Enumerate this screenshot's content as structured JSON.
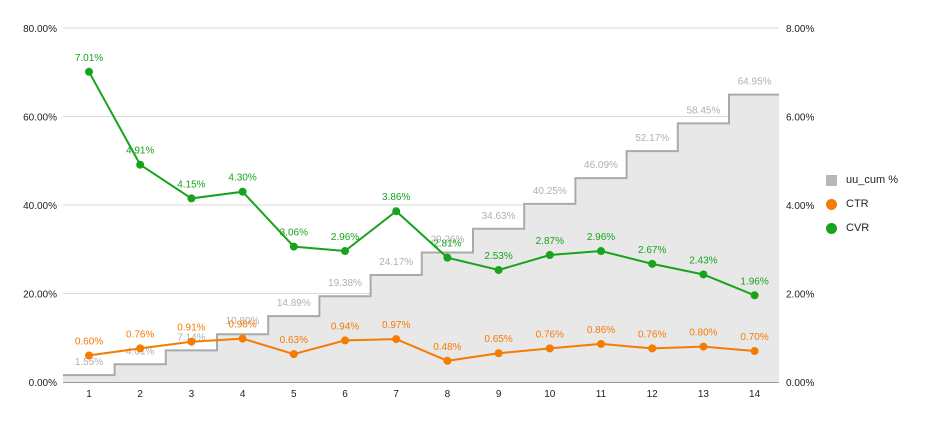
{
  "chart_data": {
    "type": "line",
    "categories": [
      "1",
      "2",
      "3",
      "4",
      "5",
      "6",
      "7",
      "8",
      "9",
      "10",
      "11",
      "12",
      "13",
      "14"
    ],
    "left_axis": {
      "ticks": [
        "0.00%",
        "20.00%",
        "40.00%",
        "60.00%",
        "80.00%"
      ],
      "range": [
        0,
        80
      ]
    },
    "right_axis": {
      "ticks": [
        "0.00%",
        "2.00%",
        "4.00%",
        "6.00%",
        "8.00%"
      ],
      "range": [
        0,
        8
      ]
    },
    "grid": true,
    "legend_position": "right",
    "series": [
      {
        "name": "uu_cum %",
        "kind": "stepped-area",
        "axis": "left",
        "color": "#b7b7b7",
        "values": [
          1.55,
          4.01,
          7.14,
          10.8,
          14.89,
          19.38,
          24.17,
          29.26,
          34.63,
          40.25,
          46.09,
          52.17,
          58.45,
          64.95
        ],
        "labels": [
          "1.55%",
          "4.01%",
          "7.14%",
          "10.80%",
          "14.89%",
          "19.38%",
          "24.17%",
          "29.26%",
          "34.63%",
          "40.25%",
          "46.09%",
          "52.17%",
          "58.45%",
          "64.95%"
        ]
      },
      {
        "name": "CTR",
        "kind": "line",
        "axis": "right",
        "color": "#f57c00",
        "values": [
          0.6,
          0.76,
          0.91,
          0.98,
          0.63,
          0.94,
          0.97,
          0.48,
          0.65,
          0.76,
          0.86,
          0.76,
          0.8,
          0.7
        ],
        "labels": [
          "0.60%",
          "0.76%",
          "0.91%",
          "0.98%",
          "0.63%",
          "0.94%",
          "0.97%",
          "0.48%",
          "0.65%",
          "0.76%",
          "0.86%",
          "0.76%",
          "0.80%",
          "0.70%"
        ]
      },
      {
        "name": "CVR",
        "kind": "line",
        "axis": "right",
        "color": "#17a31c",
        "values": [
          7.01,
          4.91,
          4.15,
          4.3,
          3.06,
          2.96,
          3.86,
          2.81,
          2.53,
          2.87,
          2.96,
          2.67,
          2.43,
          1.96
        ],
        "labels": [
          "7.01%",
          "4.91%",
          "4.15%",
          "4.30%",
          "3.06%",
          "2.96%",
          "3.86%",
          "2.81%",
          "2.53%",
          "2.87%",
          "2.96%",
          "2.67%",
          "2.43%",
          "1.96%"
        ]
      }
    ]
  }
}
